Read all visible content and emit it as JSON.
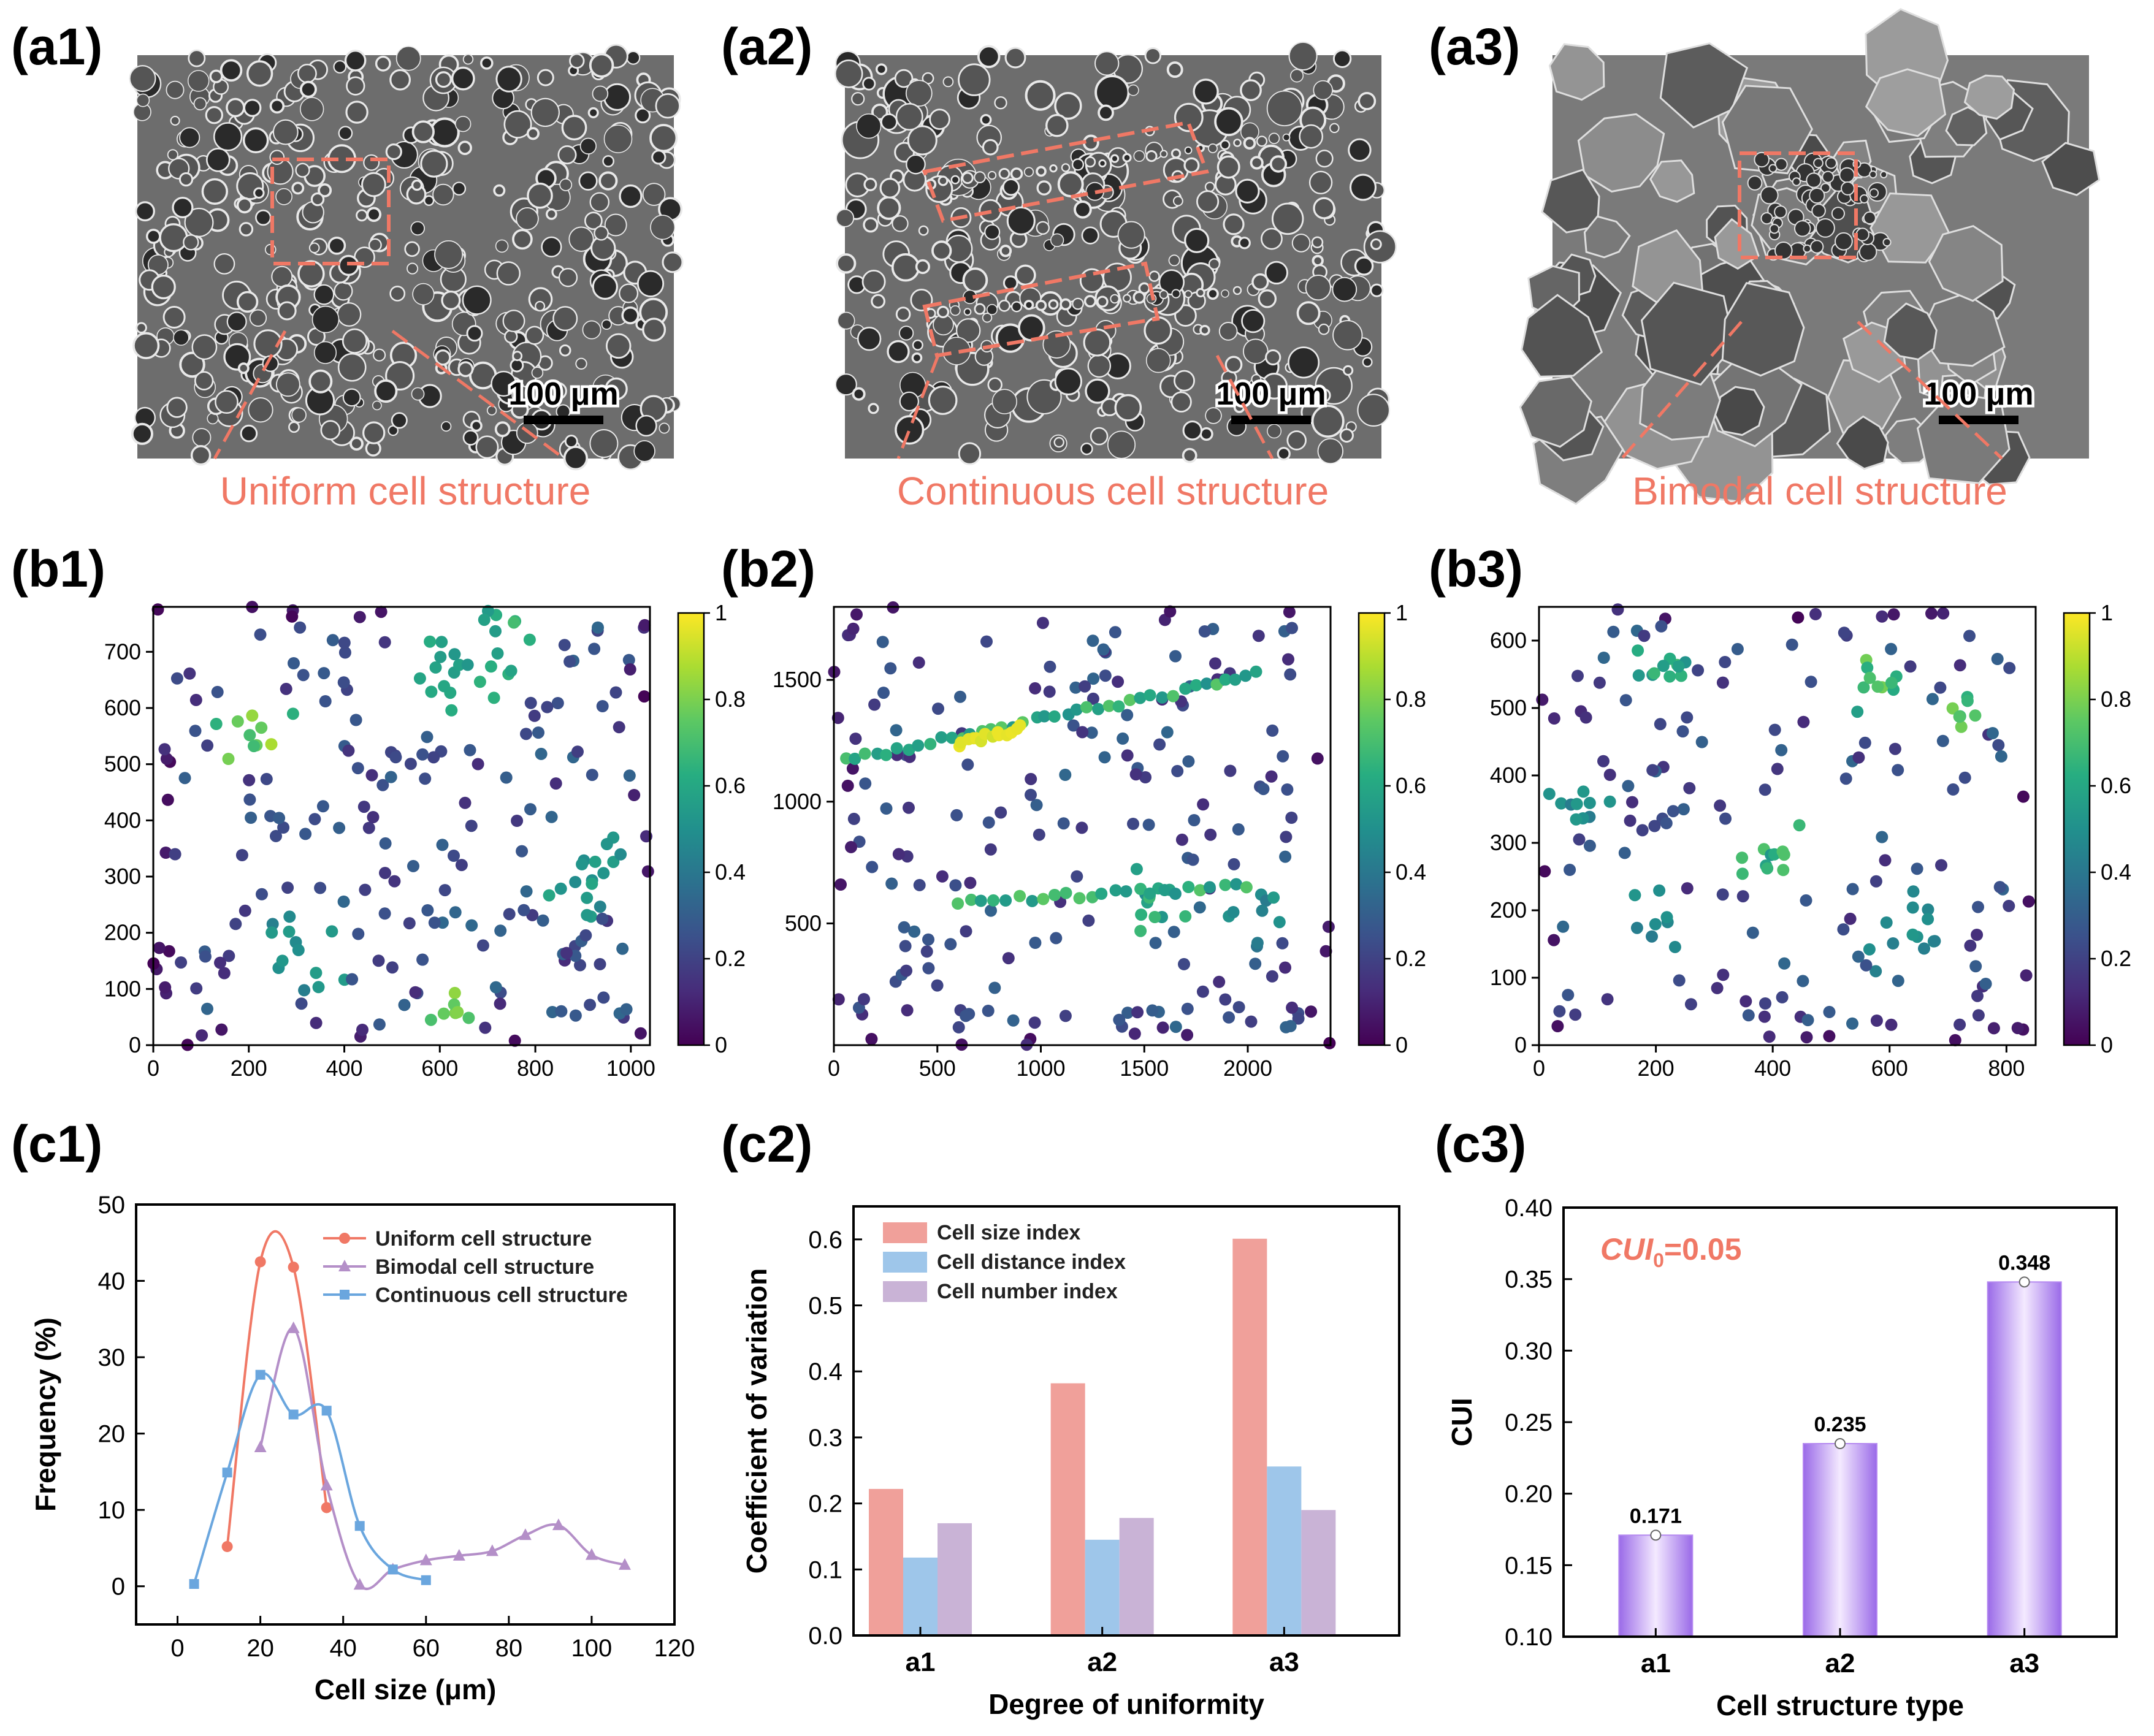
{
  "panel_labels": {
    "a1": "(a1)",
    "a2": "(a2)",
    "a3": "(a3)",
    "b1": "(b1)",
    "b2": "(b2)",
    "b3": "(b3)",
    "c1": "(c1)",
    "c2": "(c2)",
    "c3": "(c3)"
  },
  "sem_images": [
    {
      "caption": "Uniform cell structure",
      "scale_label": "100 μm",
      "style": "uniform"
    },
    {
      "caption": "Continuous cell structure",
      "scale_label": "100 μm",
      "style": "continuous"
    },
    {
      "caption": "Bimodal cell structure",
      "scale_label": "100 μm",
      "style": "bimodal"
    }
  ],
  "colors": {
    "accent": "#f07865",
    "uniform": "#f07865",
    "bimodal": "#b48fc8",
    "continuous": "#6aa6de",
    "bar_size": "#f0a09a",
    "bar_dist": "#9ec6ea",
    "bar_num": "#c9b3d6",
    "bar_cui": "#b488f0"
  },
  "chart_data": [
    {
      "id": "b1",
      "type": "scatter",
      "xlim": [
        0,
        1040
      ],
      "ylim": [
        0,
        780
      ],
      "xticks": [
        0,
        200,
        400,
        600,
        800,
        1000
      ],
      "yticks": [
        0,
        100,
        200,
        300,
        400,
        500,
        600,
        700
      ],
      "colorbar": {
        "ticks": [
          "0",
          "0.2",
          "0.4",
          "0.6",
          "0.8",
          "1"
        ]
      },
      "seed": 11,
      "n": 230,
      "clusters": [
        [
          220,
          560,
          70,
          0.9
        ],
        [
          650,
          680,
          100,
          0.7
        ],
        [
          900,
          320,
          80,
          0.6
        ],
        [
          620,
          60,
          50,
          0.85
        ],
        [
          300,
          170,
          80,
          0.6
        ]
      ]
    },
    {
      "id": "b2",
      "type": "scatter",
      "xlim": [
        0,
        2400
      ],
      "ylim": [
        0,
        1800
      ],
      "xticks": [
        0,
        500,
        1000,
        1500,
        2000
      ],
      "yticks": [
        500,
        1000,
        1500
      ],
      "colorbar": {
        "ticks": [
          "0",
          "0.2",
          "0.4",
          "0.6",
          "0.8",
          "1"
        ]
      },
      "seed": 23,
      "n": 200,
      "lines": [
        [
          [
            50,
            1170
          ],
          [
            2050,
            1520
          ],
          "#2fb8a0",
          40
        ],
        [
          [
            600,
            1240
          ],
          [
            900,
            1300
          ],
          "#f0e020",
          14
        ],
        [
          [
            600,
            590
          ],
          [
            2000,
            650
          ],
          "#2fb8a0",
          25
        ]
      ],
      "clusters": [
        [
          1550,
          600,
          120,
          0.7
        ],
        [
          2050,
          550,
          120,
          0.55
        ]
      ]
    },
    {
      "id": "b3",
      "type": "scatter",
      "xlim": [
        0,
        850
      ],
      "ylim": [
        0,
        650
      ],
      "xticks": [
        0,
        200,
        400,
        600,
        800
      ],
      "yticks": [
        0,
        100,
        200,
        300,
        400,
        500,
        600
      ],
      "colorbar": {
        "ticks": [
          "0",
          "0.2",
          "0.4",
          "0.6",
          "0.8",
          "1"
        ]
      },
      "seed": 37,
      "n": 170,
      "clusters": [
        [
          200,
          560,
          40,
          0.7
        ],
        [
          580,
          530,
          40,
          0.8
        ],
        [
          420,
          290,
          60,
          0.75
        ],
        [
          720,
          490,
          30,
          0.8
        ],
        [
          60,
          360,
          40,
          0.55
        ],
        [
          200,
          170,
          50,
          0.55
        ],
        [
          630,
          170,
          60,
          0.55
        ]
      ]
    },
    {
      "id": "c1",
      "type": "line",
      "xlabel": "Cell size (μm)",
      "ylabel": "Frequency (%)",
      "xlim": [
        -10,
        120
      ],
      "ylim": [
        -5,
        50
      ],
      "xticks": [
        0,
        20,
        40,
        60,
        80,
        100,
        120
      ],
      "yticks": [
        0,
        10,
        20,
        30,
        40,
        50
      ],
      "series": [
        {
          "name": "Uniform cell structure",
          "marker": "circle",
          "x": [
            12,
            20,
            28,
            36
          ],
          "y": [
            5.2,
            42.5,
            41.8,
            10.3
          ]
        },
        {
          "name": "Bimodal cell structure",
          "marker": "triangle",
          "x": [
            20,
            28,
            36,
            44,
            52,
            60,
            68,
            76,
            84,
            92,
            100,
            108
          ],
          "y": [
            18.2,
            33.8,
            13.2,
            0.2,
            2.2,
            3.4,
            4.0,
            4.6,
            6.7,
            8.0,
            4.1,
            2.8
          ]
        },
        {
          "name": "Continuous cell structure",
          "marker": "square",
          "x": [
            4,
            12,
            20,
            28,
            36,
            44,
            52,
            60
          ],
          "y": [
            0.3,
            14.9,
            27.7,
            22.5,
            23.0,
            7.9,
            2.2,
            0.8
          ]
        }
      ]
    },
    {
      "id": "c2",
      "type": "bar",
      "xlabel": "Degree of uniformity",
      "ylabel": "Coefficient of variation",
      "categories": [
        "a1",
        "a2",
        "a3"
      ],
      "ylim": [
        0,
        0.65
      ],
      "yticks": [
        "0.0",
        "0.1",
        "0.2",
        "0.3",
        "0.4",
        "0.5",
        "0.6"
      ],
      "series": [
        {
          "name": "Cell size index",
          "values": [
            0.222,
            0.382,
            0.601
          ]
        },
        {
          "name": "Cell distance index",
          "values": [
            0.118,
            0.145,
            0.256
          ]
        },
        {
          "name": "Cell number index",
          "values": [
            0.17,
            0.178,
            0.19
          ]
        }
      ]
    },
    {
      "id": "c3",
      "type": "bar",
      "xlabel": "Cell structure type",
      "ylabel": "CUI",
      "categories": [
        "a1",
        "a2",
        "a3"
      ],
      "ylim": [
        0.1,
        0.4
      ],
      "yticks": [
        "0.10",
        "0.15",
        "0.20",
        "0.25",
        "0.30",
        "0.35",
        "0.40"
      ],
      "values": [
        0.171,
        0.235,
        0.348
      ],
      "value_labels": [
        "0.171",
        "0.235",
        "0.348"
      ],
      "annotation": {
        "base": "CUI",
        "sub": "0",
        "rest": "=0.05"
      }
    }
  ]
}
